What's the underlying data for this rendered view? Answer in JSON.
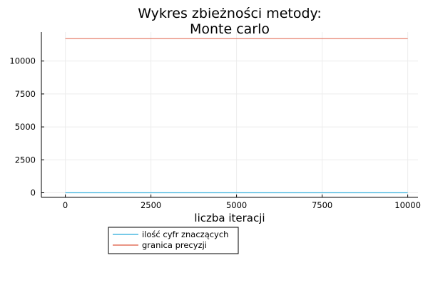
{
  "chart_data": {
    "type": "line",
    "title": [
      "Wykres zbieżności metody:",
      "Monte carlo"
    ],
    "xlabel": "liczba iteracji",
    "ylabel": "",
    "xlim": [
      -700,
      10300
    ],
    "ylim": [
      -350,
      12200
    ],
    "xticks": [
      0,
      2500,
      5000,
      7500,
      10000
    ],
    "yticks": [
      0,
      2500,
      5000,
      7500,
      10000
    ],
    "grid": true,
    "legend_position": "bottom-left, outside plot",
    "series": [
      {
        "name": "ilość cyfr znaczących",
        "color": "#4ab8e0",
        "x": [
          1,
          10000
        ],
        "y": [
          0,
          0
        ]
      },
      {
        "name": "granica precyzji",
        "color": "#e3705b",
        "x": [
          1,
          10000
        ],
        "y": [
          11700,
          11700
        ]
      }
    ]
  }
}
